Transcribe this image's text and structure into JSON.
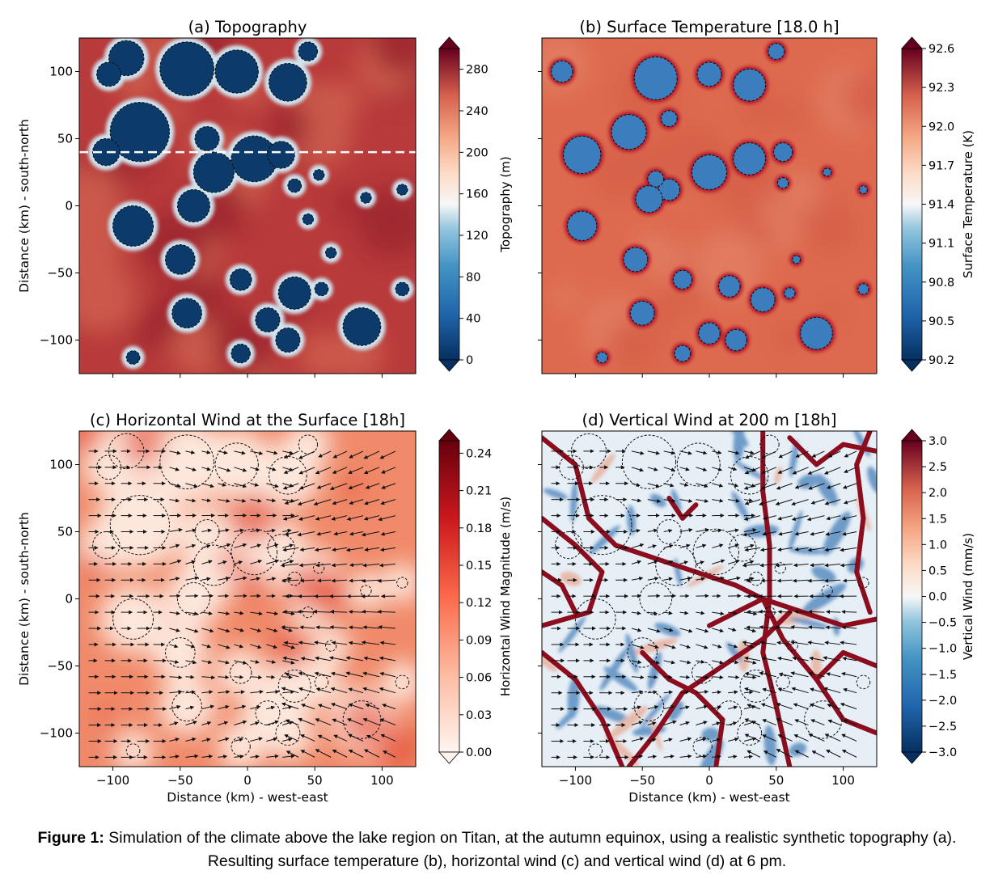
{
  "chart_data": [
    {
      "id": "a",
      "type": "heatmap",
      "title": "(a) Topography",
      "xlabel": "",
      "ylabel": "Distance (km) - south-north",
      "x_ticks": [
        -100,
        -50,
        0,
        50,
        100
      ],
      "y_ticks": [
        100,
        50,
        0,
        -50,
        -100
      ],
      "x_tick_labels": [],
      "y_tick_labels": [
        "100",
        "50",
        "0",
        "−50",
        "−100"
      ],
      "xlim": [
        -125,
        125
      ],
      "ylim": [
        -125,
        125
      ],
      "colorbar": {
        "label": "Topography (m)",
        "colormap": "RdBu_r",
        "ticks": [
          0,
          40,
          80,
          120,
          160,
          200,
          240,
          280
        ],
        "tick_labels": [
          "0",
          "40",
          "80",
          "120",
          "160",
          "200",
          "240",
          "280"
        ],
        "range": [
          0,
          300
        ]
      },
      "background_color": "#b83a3a",
      "lake_fill": "#0b3a6b",
      "cross_section_y": 40,
      "lakes": [
        {
          "cx": -90,
          "cy": 110,
          "r": 13
        },
        {
          "cx": -103,
          "cy": 98,
          "r": 9
        },
        {
          "cx": -45,
          "cy": 102,
          "r": 20
        },
        {
          "cx": -8,
          "cy": 100,
          "r": 16
        },
        {
          "cx": 30,
          "cy": 92,
          "r": 14
        },
        {
          "cx": 45,
          "cy": 115,
          "r": 7
        },
        {
          "cx": -80,
          "cy": 55,
          "r": 22
        },
        {
          "cx": -30,
          "cy": 50,
          "r": 9
        },
        {
          "cx": 5,
          "cy": 35,
          "r": 17
        },
        {
          "cx": -25,
          "cy": 25,
          "r": 15
        },
        {
          "cx": 25,
          "cy": 38,
          "r": 10
        },
        {
          "cx": -105,
          "cy": 40,
          "r": 10
        },
        {
          "cx": 35,
          "cy": 15,
          "r": 5
        },
        {
          "cx": 53,
          "cy": 23,
          "r": 4
        },
        {
          "cx": 88,
          "cy": 6,
          "r": 4
        },
        {
          "cx": 115,
          "cy": 12,
          "r": 4
        },
        {
          "cx": 45,
          "cy": -10,
          "r": 4
        },
        {
          "cx": -85,
          "cy": -15,
          "r": 15
        },
        {
          "cx": -40,
          "cy": 0,
          "r": 12
        },
        {
          "cx": -50,
          "cy": -40,
          "r": 11
        },
        {
          "cx": 62,
          "cy": -35,
          "r": 4
        },
        {
          "cx": 115,
          "cy": -62,
          "r": 5
        },
        {
          "cx": -5,
          "cy": -55,
          "r": 8
        },
        {
          "cx": 35,
          "cy": -65,
          "r": 12
        },
        {
          "cx": 55,
          "cy": -62,
          "r": 5
        },
        {
          "cx": -45,
          "cy": -80,
          "r": 11
        },
        {
          "cx": 15,
          "cy": -85,
          "r": 9
        },
        {
          "cx": 85,
          "cy": -90,
          "r": 14
        },
        {
          "cx": 30,
          "cy": -100,
          "r": 9
        },
        {
          "cx": -5,
          "cy": -110,
          "r": 7
        },
        {
          "cx": -85,
          "cy": -113,
          "r": 5
        }
      ]
    },
    {
      "id": "b",
      "type": "heatmap",
      "title": "(b) Surface Temperature [18.0 h]",
      "xlabel": "",
      "ylabel": "",
      "x_ticks": [
        -100,
        -50,
        0,
        50,
        100
      ],
      "y_ticks": [
        100,
        50,
        0,
        -50,
        -100
      ],
      "x_tick_labels": [],
      "y_tick_labels": [],
      "xlim": [
        -125,
        125
      ],
      "ylim": [
        -125,
        125
      ],
      "colorbar": {
        "label": "Surface Temperature (K)",
        "colormap": "RdBu_r",
        "ticks": [
          90.2,
          90.5,
          90.8,
          91.1,
          91.4,
          91.7,
          92.0,
          92.3,
          92.6
        ],
        "tick_labels": [
          "90.2",
          "90.5",
          "90.8",
          "91.1",
          "91.4",
          "91.7",
          "92.0",
          "92.3",
          "92.6"
        ],
        "range": [
          90.2,
          92.6
        ]
      },
      "background_color": "#dd6a4f",
      "lake_fill": "#3c7ebd",
      "lakes": [
        {
          "cx": -110,
          "cy": 100,
          "r": 8
        },
        {
          "cx": -40,
          "cy": 95,
          "r": 16
        },
        {
          "cx": 0,
          "cy": 98,
          "r": 9
        },
        {
          "cx": 30,
          "cy": 90,
          "r": 12
        },
        {
          "cx": 50,
          "cy": 115,
          "r": 6
        },
        {
          "cx": -60,
          "cy": 55,
          "r": 13
        },
        {
          "cx": -95,
          "cy": 38,
          "r": 14
        },
        {
          "cx": -30,
          "cy": 65,
          "r": 6
        },
        {
          "cx": -30,
          "cy": 12,
          "r": 8
        },
        {
          "cx": -40,
          "cy": 20,
          "r": 6
        },
        {
          "cx": 0,
          "cy": 25,
          "r": 13
        },
        {
          "cx": 30,
          "cy": 35,
          "r": 12
        },
        {
          "cx": 55,
          "cy": 40,
          "r": 7
        },
        {
          "cx": 55,
          "cy": 17,
          "r": 4
        },
        {
          "cx": 88,
          "cy": 25,
          "r": 3
        },
        {
          "cx": 115,
          "cy": 12,
          "r": 3
        },
        {
          "cx": -95,
          "cy": -15,
          "r": 11
        },
        {
          "cx": -45,
          "cy": 5,
          "r": 10
        },
        {
          "cx": -55,
          "cy": -40,
          "r": 9
        },
        {
          "cx": -20,
          "cy": -55,
          "r": 7
        },
        {
          "cx": 15,
          "cy": -60,
          "r": 8
        },
        {
          "cx": 40,
          "cy": -70,
          "r": 9
        },
        {
          "cx": 60,
          "cy": -65,
          "r": 4
        },
        {
          "cx": -50,
          "cy": -80,
          "r": 9
        },
        {
          "cx": 0,
          "cy": -95,
          "r": 8
        },
        {
          "cx": 80,
          "cy": -95,
          "r": 12
        },
        {
          "cx": 20,
          "cy": -100,
          "r": 8
        },
        {
          "cx": -20,
          "cy": -110,
          "r": 6
        },
        {
          "cx": -80,
          "cy": -113,
          "r": 4
        },
        {
          "cx": 65,
          "cy": -40,
          "r": 3
        },
        {
          "cx": 115,
          "cy": -62,
          "r": 4
        }
      ]
    },
    {
      "id": "c",
      "type": "heatmap",
      "title": "(c) Horizontal Wind at the Surface [18h]",
      "xlabel": "Distance (km) - west-east",
      "ylabel": "Distance (km) - south-north",
      "x_ticks": [
        -100,
        -50,
        0,
        50,
        100
      ],
      "y_ticks": [
        100,
        50,
        0,
        -50,
        -100
      ],
      "x_tick_labels": [
        "−100",
        "−50",
        "0",
        "50",
        "100"
      ],
      "y_tick_labels": [
        "100",
        "50",
        "0",
        "−50",
        "−100"
      ],
      "xlim": [
        -125,
        125
      ],
      "ylim": [
        -125,
        125
      ],
      "colorbar": {
        "label": "Horizontal Wind Magnitude (m/s)",
        "colormap": "Reds",
        "ticks": [
          0.0,
          0.03,
          0.06,
          0.09,
          0.12,
          0.15,
          0.18,
          0.21,
          0.24
        ],
        "tick_labels": [
          "0.00",
          "0.03",
          "0.06",
          "0.09",
          "0.12",
          "0.15",
          "0.18",
          "0.21",
          "0.24"
        ],
        "range": [
          0,
          0.25
        ]
      },
      "background_color": "#f08a6a"
    },
    {
      "id": "d",
      "type": "heatmap",
      "title": "(d) Vertical Wind at 200 m [18h]",
      "xlabel": "Distance (km) - west-east",
      "ylabel": "",
      "x_ticks": [
        -100,
        -50,
        0,
        50,
        100
      ],
      "y_ticks": [
        100,
        50,
        0,
        -50,
        -100
      ],
      "x_tick_labels": [
        "−100",
        "−50",
        "0",
        "50",
        "100"
      ],
      "y_tick_labels": [],
      "xlim": [
        -125,
        125
      ],
      "ylim": [
        -125,
        125
      ],
      "colorbar": {
        "label": "Vertical Wind (mm/s)",
        "colormap": "RdBu_r",
        "ticks": [
          -3.0,
          -2.5,
          -2.0,
          -1.5,
          -1.0,
          -0.5,
          0.0,
          0.5,
          1.0,
          1.5,
          2.0,
          2.5,
          3.0
        ],
        "tick_labels": [
          "−3.0",
          "−2.5",
          "−2.0",
          "−1.5",
          "−1.0",
          "−0.5",
          "0.0",
          "0.5",
          "1.0",
          "1.5",
          "2.0",
          "2.5",
          "3.0"
        ],
        "range": [
          -3.0,
          3.0
        ]
      },
      "background_color": "#e6eef6",
      "updraft_color": "#8b0d1e"
    }
  ],
  "caption": {
    "label": "Figure 1:",
    "text": " Simulation of the climate above the lake region on Titan, at the autumn equinox, using a realistic synthetic topography (a). Resulting surface temperature (b), horizontal wind (c) and vertical wind (d) at 6 pm."
  }
}
